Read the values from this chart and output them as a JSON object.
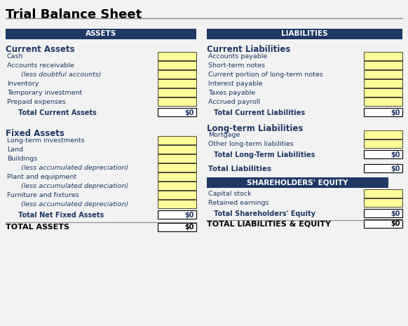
{
  "title": "Trial Balance Sheet",
  "title_fontsize": 13,
  "bg_color": "#f2f2f2",
  "header_bg": "#1f3864",
  "header_text_color": "#ffffff",
  "header_fontsize": 7.5,
  "cell_fill": "#ffff99",
  "cell_border": "#000000",
  "total_fill": "#ffffff",
  "text_color": "#1f3864",
  "bold_text_color": "#1f3864",
  "row_fontsize": 6.8,
  "total_fontsize": 7,
  "section_title_fontsize": 8.5,
  "footer_fontsize": 8,
  "left_col": {
    "header": "ASSETS",
    "sections": [
      {
        "title": "Current Assets",
        "rows": [
          {
            "label": "Cash",
            "indent": false
          },
          {
            "label": "Accounts receivable",
            "indent": false
          },
          {
            "label": "(less doubtful accounts)",
            "indent": true
          },
          {
            "label": "Inventory",
            "indent": false
          },
          {
            "label": "Temporary investment",
            "indent": false
          },
          {
            "label": "Prepaid expenses",
            "indent": false
          }
        ],
        "total_label": "Total Current Assets",
        "total_value": "$0"
      },
      {
        "title": "Fixed Assets",
        "rows": [
          {
            "label": "Long-term investments",
            "indent": false
          },
          {
            "label": "Land",
            "indent": false
          },
          {
            "label": "Buildings",
            "indent": false
          },
          {
            "label": "(less accumulated depreciation)",
            "indent": true
          },
          {
            "label": "Plant and equipment",
            "indent": false
          },
          {
            "label": "(less accumulated depreciation)",
            "indent": true
          },
          {
            "label": "Furniture and fixtures",
            "indent": false
          },
          {
            "label": "(less accumulated depreciation)",
            "indent": true
          }
        ],
        "total_label": "Total Net Fixed Assets",
        "total_value": "$0"
      }
    ],
    "footer_label": "TOTAL ASSETS",
    "footer_value": "$0"
  },
  "right_col": {
    "header": "LIABILITIES",
    "sections": [
      {
        "title": "Current Liabilities",
        "rows": [
          {
            "label": "Accounts payable",
            "indent": false
          },
          {
            "label": "Short-term notes",
            "indent": false
          },
          {
            "label": "Current portion of long-term notes",
            "indent": false
          },
          {
            "label": "Interest payable",
            "indent": false
          },
          {
            "label": "Taxes payable",
            "indent": false
          },
          {
            "label": "Accrued payroll",
            "indent": false
          }
        ],
        "total_label": "Total Current Liabilities",
        "total_value": "$0",
        "is_summary": false,
        "title_is_header": false
      },
      {
        "title": "Long-term Liabilities",
        "rows": [
          {
            "label": "Mortgage",
            "indent": false
          },
          {
            "label": "Other long-term liabilities",
            "indent": false
          }
        ],
        "total_label": "Total Long-Term Liabilities",
        "total_value": "$0",
        "is_summary": false,
        "title_is_header": false
      },
      {
        "title": null,
        "rows": [],
        "total_label": "Total Liabilities",
        "total_value": "$0",
        "is_summary": true,
        "title_is_header": false
      },
      {
        "title": "SHAREHOLDERS' EQUITY",
        "rows": [
          {
            "label": "Capital stock",
            "indent": false
          },
          {
            "label": "Retained earnings",
            "indent": false
          }
        ],
        "total_label": "Total Shareholders' Equity",
        "total_value": "$0",
        "is_summary": false,
        "title_is_header": true
      }
    ],
    "footer_label": "TOTAL LIABILITIES & EQUITY",
    "footer_value": "$0"
  }
}
